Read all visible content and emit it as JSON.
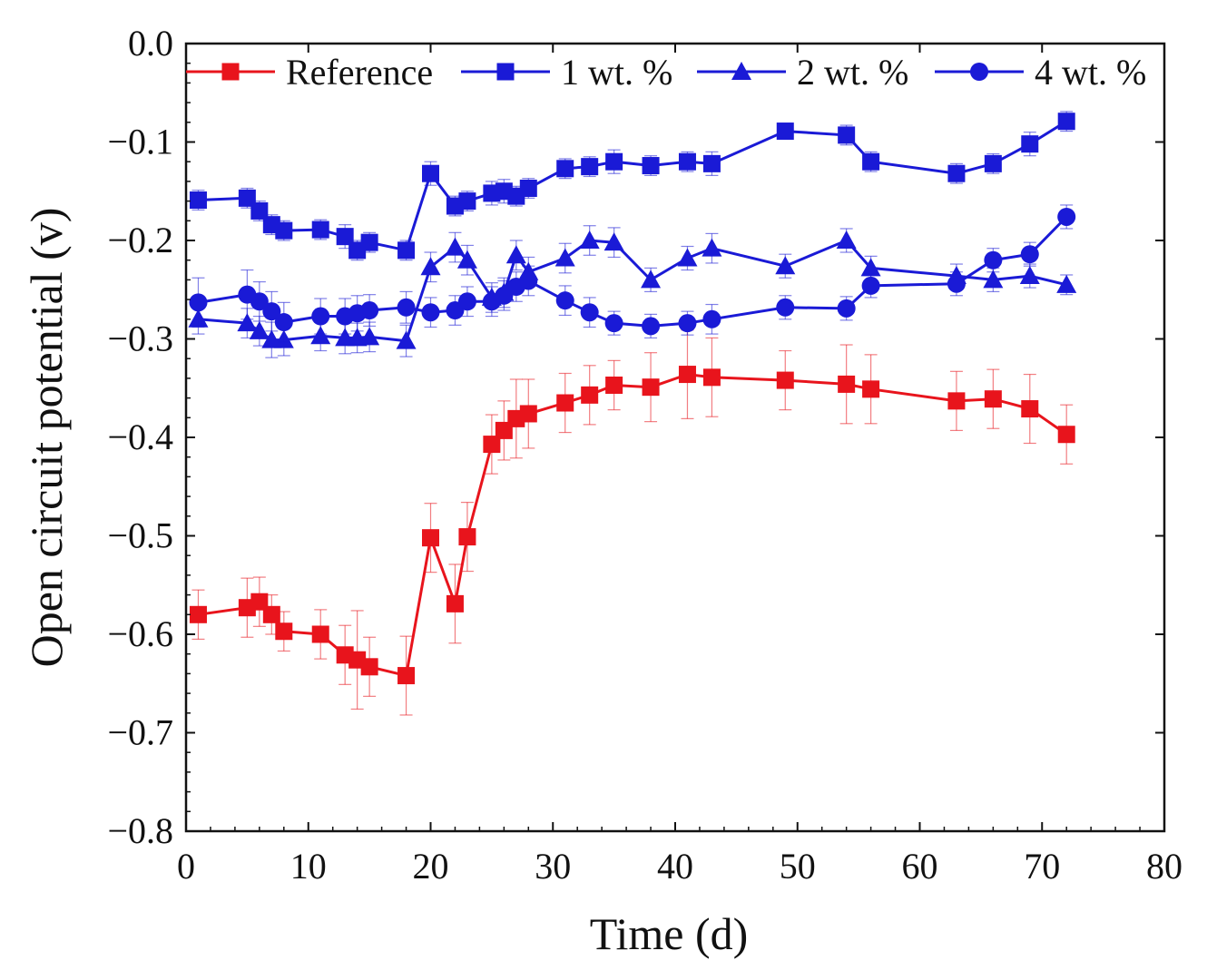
{
  "chart_data": {
    "type": "line",
    "title": "",
    "xlabel": "Time (d)",
    "ylabel": "Open circuit potential (v)",
    "xlim": [
      0,
      80
    ],
    "ylim": [
      -0.8,
      0.0
    ],
    "x_ticks": [
      0,
      10,
      20,
      30,
      40,
      50,
      60,
      70,
      80
    ],
    "y_ticks": [
      0.0,
      -0.1,
      -0.2,
      -0.3,
      -0.4,
      -0.5,
      -0.6,
      -0.7,
      -0.8
    ],
    "x_tick_labels": [
      "0",
      "10",
      "20",
      "30",
      "40",
      "50",
      "60",
      "70",
      "80"
    ],
    "y_tick_labels": [
      "0.0",
      "−0.1",
      "−0.2",
      "−0.3",
      "−0.4",
      "−0.5",
      "−0.6",
      "−0.7",
      "−0.8"
    ],
    "grid": false,
    "legend_position": "top",
    "series": [
      {
        "name": "Reference",
        "color": "#e8141c",
        "marker": "square",
        "x": [
          1,
          5,
          6,
          7,
          8,
          11,
          13,
          14,
          15,
          18,
          20,
          22,
          23,
          25,
          26,
          27,
          28,
          31,
          33,
          35,
          38,
          41,
          43,
          49,
          54,
          56,
          63,
          66,
          69,
          72
        ],
        "y": [
          -0.58,
          -0.573,
          -0.567,
          -0.58,
          -0.597,
          -0.6,
          -0.621,
          -0.626,
          -0.633,
          -0.642,
          -0.502,
          -0.569,
          -0.501,
          -0.407,
          -0.393,
          -0.381,
          -0.376,
          -0.365,
          -0.357,
          -0.347,
          -0.349,
          -0.336,
          -0.339,
          -0.342,
          -0.346,
          -0.351,
          -0.363,
          -0.361,
          -0.371,
          -0.397
        ],
        "err": [
          0.025,
          0.03,
          0.025,
          0.02,
          0.02,
          0.025,
          0.03,
          0.05,
          0.03,
          0.04,
          0.035,
          0.04,
          0.035,
          0.03,
          0.03,
          0.04,
          0.035,
          0.03,
          0.03,
          0.025,
          0.035,
          0.045,
          0.04,
          0.03,
          0.04,
          0.035,
          0.03,
          0.03,
          0.035,
          0.03
        ]
      },
      {
        "name": "1 wt. %",
        "color": "#1a1ad6",
        "marker": "square",
        "x": [
          1,
          5,
          6,
          7,
          8,
          11,
          13,
          14,
          15,
          18,
          20,
          22,
          23,
          25,
          26,
          27,
          28,
          31,
          33,
          35,
          38,
          41,
          43,
          49,
          54,
          56,
          63,
          66,
          69,
          72
        ],
        "y": [
          -0.159,
          -0.157,
          -0.17,
          -0.184,
          -0.19,
          -0.189,
          -0.196,
          -0.21,
          -0.202,
          -0.21,
          -0.132,
          -0.165,
          -0.16,
          -0.152,
          -0.15,
          -0.155,
          -0.147,
          -0.127,
          -0.125,
          -0.12,
          -0.124,
          -0.12,
          -0.122,
          -0.089,
          -0.093,
          -0.12,
          -0.132,
          -0.122,
          -0.102,
          -0.079
        ],
        "err": [
          0.01,
          0.01,
          0.01,
          0.01,
          0.01,
          0.01,
          0.012,
          0.01,
          0.01,
          0.01,
          0.012,
          0.01,
          0.01,
          0.012,
          0.012,
          0.01,
          0.01,
          0.01,
          0.01,
          0.012,
          0.01,
          0.01,
          0.012,
          0.008,
          0.01,
          0.01,
          0.01,
          0.01,
          0.012,
          0.01
        ]
      },
      {
        "name": "2 wt. %",
        "color": "#1a1ad6",
        "marker": "triangle",
        "x": [
          1,
          5,
          6,
          7,
          8,
          11,
          13,
          14,
          15,
          18,
          20,
          22,
          23,
          25,
          26,
          27,
          28,
          31,
          33,
          35,
          38,
          41,
          43,
          49,
          54,
          56,
          63,
          66,
          69,
          72
        ],
        "y": [
          -0.28,
          -0.284,
          -0.292,
          -0.301,
          -0.301,
          -0.297,
          -0.299,
          -0.299,
          -0.298,
          -0.302,
          -0.227,
          -0.207,
          -0.22,
          -0.258,
          -0.253,
          -0.215,
          -0.232,
          -0.218,
          -0.2,
          -0.202,
          -0.24,
          -0.218,
          -0.208,
          -0.226,
          -0.2,
          -0.228,
          -0.236,
          -0.24,
          -0.236,
          -0.245
        ],
        "err": [
          0.015,
          0.015,
          0.015,
          0.018,
          0.016,
          0.015,
          0.016,
          0.015,
          0.015,
          0.016,
          0.015,
          0.015,
          0.015,
          0.015,
          0.015,
          0.015,
          0.015,
          0.015,
          0.015,
          0.015,
          0.012,
          0.012,
          0.015,
          0.012,
          0.012,
          0.012,
          0.012,
          0.012,
          0.012,
          0.01
        ]
      },
      {
        "name": "4 wt. %",
        "color": "#1a1ad6",
        "marker": "circle",
        "x": [
          1,
          5,
          6,
          7,
          8,
          11,
          13,
          14,
          15,
          18,
          20,
          22,
          23,
          25,
          26,
          27,
          28,
          31,
          33,
          35,
          38,
          41,
          43,
          49,
          54,
          56,
          63,
          66,
          69,
          72
        ],
        "y": [
          -0.263,
          -0.255,
          -0.262,
          -0.272,
          -0.283,
          -0.277,
          -0.277,
          -0.274,
          -0.271,
          -0.268,
          -0.273,
          -0.271,
          -0.262,
          -0.262,
          -0.256,
          -0.247,
          -0.241,
          -0.261,
          -0.273,
          -0.284,
          -0.287,
          -0.284,
          -0.28,
          -0.268,
          -0.269,
          -0.246,
          -0.244,
          -0.22,
          -0.214,
          -0.176
        ],
        "err": [
          0.025,
          0.025,
          0.02,
          0.02,
          0.02,
          0.018,
          0.018,
          0.018,
          0.016,
          0.016,
          0.015,
          0.015,
          0.015,
          0.015,
          0.015,
          0.015,
          0.015,
          0.015,
          0.015,
          0.012,
          0.012,
          0.012,
          0.015,
          0.012,
          0.012,
          0.012,
          0.012,
          0.012,
          0.012,
          0.012
        ]
      }
    ]
  }
}
